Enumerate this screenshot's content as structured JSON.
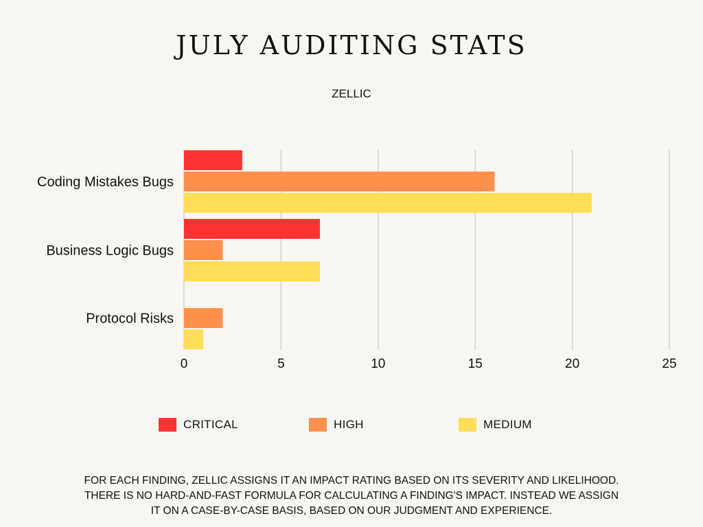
{
  "header": {
    "title": "JULY AUDITING STATS",
    "subtitle": "ZELLIC"
  },
  "chart_data": {
    "type": "bar",
    "orientation": "horizontal",
    "categories": [
      "Coding Mistakes Bugs",
      "Business Logic Bugs",
      "Protocol Risks"
    ],
    "series": [
      {
        "name": "CRITICAL",
        "color": "#ff3333",
        "values": [
          3,
          7,
          0
        ]
      },
      {
        "name": "HIGH",
        "color": "#ff914d",
        "values": [
          16,
          2,
          2
        ]
      },
      {
        "name": "MEDIUM",
        "color": "#ffde59",
        "values": [
          21,
          7,
          1
        ]
      }
    ],
    "xlim": [
      0,
      25
    ],
    "xticks": [
      0,
      5,
      10,
      15,
      20,
      25
    ],
    "grid": true,
    "legend_position": "bottom"
  },
  "footnote": {
    "lines": [
      "FOR EACH FINDING, ZELLIC ASSIGNS IT AN IMPACT RATING BASED ON ITS SEVERITY AND LIKELIHOOD.",
      "THERE IS NO HARD-AND-FAST FORMULA FOR CALCULATING A FINDING'S IMPACT. INSTEAD WE ASSIGN",
      "IT ON A CASE-BY-CASE BASIS, BASED ON OUR JUDGMENT AND EXPERIENCE."
    ]
  }
}
